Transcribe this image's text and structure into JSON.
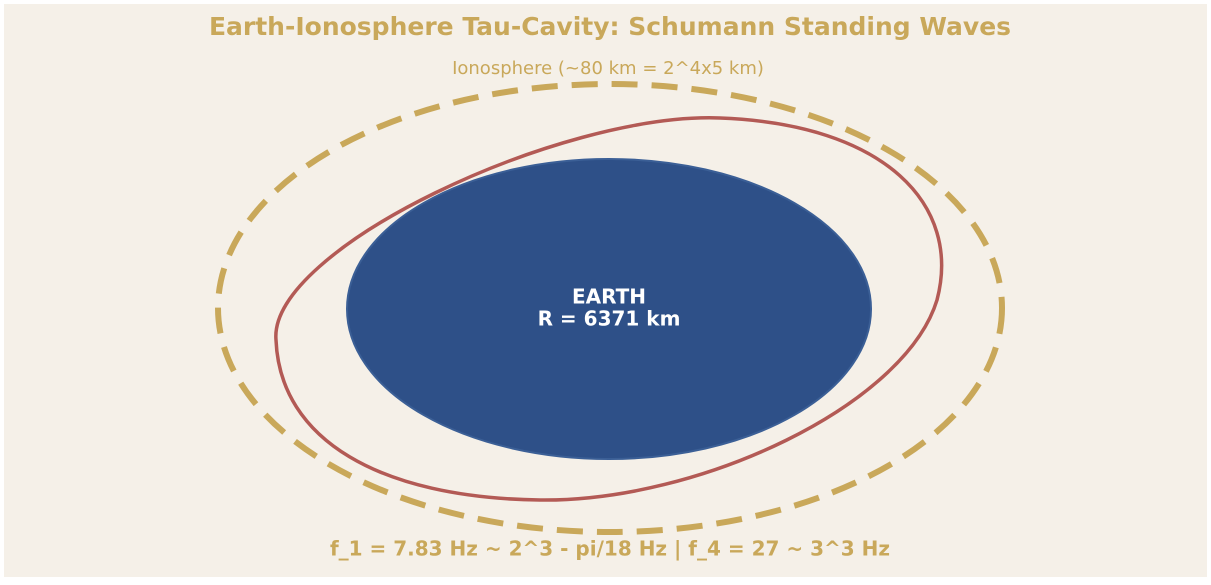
{
  "title": "Earth-Ionosphere Tau-Cavity: Schumann Standing Waves",
  "ionosphere_label": "Ionosphere (~80 km = 2^4x5 km)",
  "earth": {
    "name": "EARTH",
    "radius": "R = 6371 km"
  },
  "footer": "f_1 = 7.83 Hz ~ 2^3 - pi/18 Hz | f_4 = 27 ~ 3^3 Hz"
}
